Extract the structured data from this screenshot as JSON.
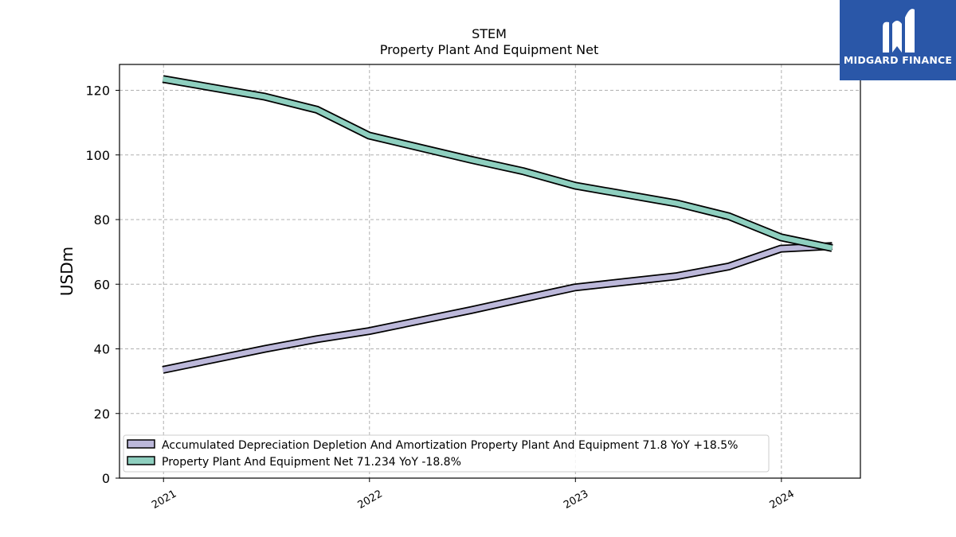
{
  "chart_data": {
    "type": "line",
    "title": "STEM",
    "subtitle": "Property Plant And Equipment Net",
    "ylabel": "USDm",
    "xlabel": "",
    "ylim": [
      0,
      128
    ],
    "yticks": [
      0,
      20,
      40,
      60,
      80,
      100,
      120
    ],
    "xlim": [
      "2020-10-15",
      "2024-05-20"
    ],
    "xticks": [
      "2021",
      "2022",
      "2023",
      "2024"
    ],
    "grid": true,
    "legend_position": "lower-left",
    "x": [
      "2020-12-31",
      "2021-06-30",
      "2021-09-30",
      "2021-12-31",
      "2022-06-30",
      "2022-09-30",
      "2022-12-31",
      "2023-06-30",
      "2023-09-30",
      "2023-12-31",
      "2024-03-31"
    ],
    "series": [
      {
        "name": "Accumulated Depreciation Depletion And Amortization Property Plant And Equipment",
        "legend": "Accumulated Depreciation Depletion And Amortization Property Plant And Equipment  71.8 YoY +18.5%",
        "color": "#bcb8da",
        "values": [
          33.5,
          40,
          43,
          45.5,
          52,
          55.5,
          59,
          62.5,
          65.5,
          71,
          71.8
        ]
      },
      {
        "name": "Property Plant And Equipment Net",
        "legend": "Property Plant And Equipment Net  71.234 YoY -18.8%",
        "color": "#8ecfbf",
        "values": [
          123.5,
          118,
          114,
          106,
          98.5,
          95,
          90.5,
          85,
          81,
          74.5,
          71.2
        ]
      }
    ]
  },
  "logo": {
    "text": "MIDGARD FINANCE",
    "background": "#2a57a8"
  }
}
